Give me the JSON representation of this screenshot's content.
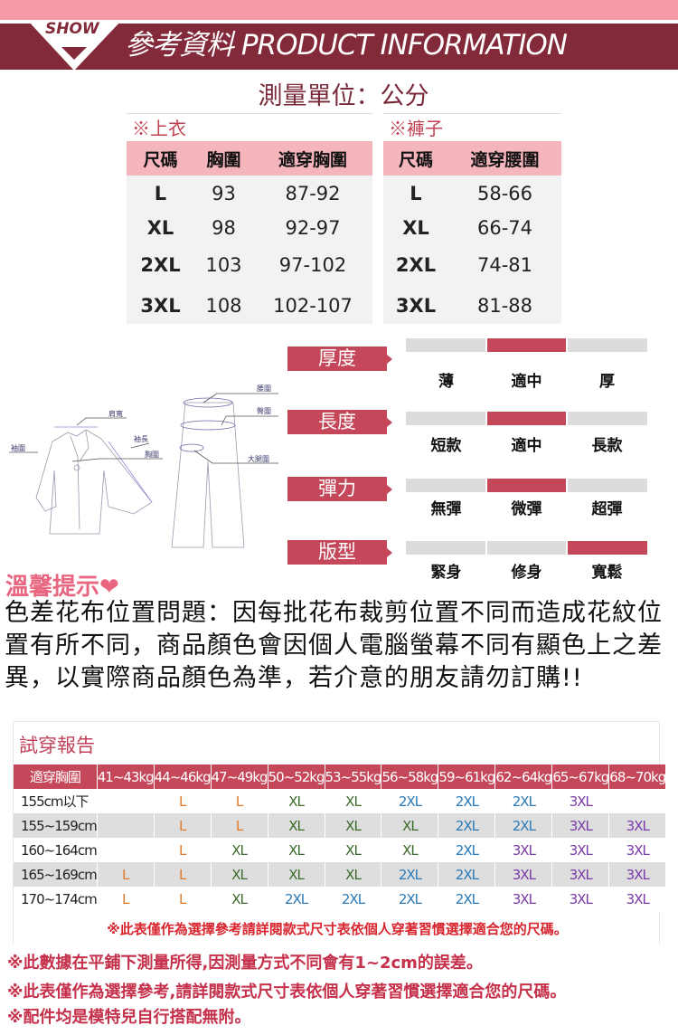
{
  "header": {
    "badge": "SHOW",
    "title": "參考資料 PRODUCT INFORMATION",
    "unit": "測量單位：公分"
  },
  "colors": {
    "maroon": "#832a3a",
    "pink_band": "#f79aa5",
    "accent": "#c5485a",
    "table_header": "#f5b5bd",
    "size_L": "#e07a2a",
    "size_XL": "#3a6b2a",
    "size_2XL": "#2a7ab8",
    "size_3XL": "#7a3aa8"
  },
  "tops": {
    "title": "※上衣",
    "headers": [
      "尺碼",
      "胸圍",
      "適穿胸圍"
    ],
    "rows": [
      [
        "L",
        "93",
        "87-92"
      ],
      [
        "XL",
        "98",
        "92-97"
      ],
      [
        "2XL",
        "103",
        "97-102"
      ],
      [
        "3XL",
        "108",
        "102-107"
      ]
    ]
  },
  "pants": {
    "title": "※褲子",
    "headers": [
      "尺碼",
      "適穿腰圍"
    ],
    "rows": [
      [
        "L",
        "58-66"
      ],
      [
        "XL",
        "66-74"
      ],
      [
        "2XL",
        "74-81"
      ],
      [
        "3XL",
        "81-88"
      ]
    ]
  },
  "diagram": {
    "jacket": [
      "肩寬",
      "袖長",
      "胸圍",
      "袖圍"
    ],
    "pants": [
      "腰圍",
      "臀圍",
      "大腿圍"
    ]
  },
  "features": [
    {
      "label": "厚度",
      "options": [
        "薄",
        "適中",
        "厚"
      ],
      "selected": 1
    },
    {
      "label": "長度",
      "options": [
        "短款",
        "適中",
        "長款"
      ],
      "selected": 1
    },
    {
      "label": "彈力",
      "options": [
        "無彈",
        "微彈",
        "超彈"
      ],
      "selected": 1
    },
    {
      "label": "版型",
      "options": [
        "緊身",
        "修身",
        "寬鬆"
      ],
      "selected": 2
    }
  ],
  "tip": {
    "title": "溫馨提示",
    "icon": "heart-icon",
    "body": "色差花布位置問題：因每批花布裁剪位置不同而造成花紋位置有所不同，商品顏色會因個人電腦螢幕不同有顯色上之差異，以實際商品顏色為準，若介意的朋友請勿訂購!!"
  },
  "report": {
    "title": "試穿報告",
    "headers": [
      "適穿胸圍",
      "41~43kg",
      "44~46kg",
      "47~49kg",
      "50~52kg",
      "53~55kg",
      "56~58kg",
      "59~61kg",
      "62~64kg",
      "65~67kg",
      "68~70kg"
    ],
    "rows": [
      [
        "155cm以下",
        "",
        "L",
        "L",
        "XL",
        "XL",
        "2XL",
        "2XL",
        "2XL",
        "3XL",
        ""
      ],
      [
        "155~159cm",
        "",
        "L",
        "L",
        "XL",
        "XL",
        "XL",
        "2XL",
        "2XL",
        "3XL",
        "3XL"
      ],
      [
        "160~164cm",
        "",
        "L",
        "XL",
        "XL",
        "XL",
        "XL",
        "2XL",
        "3XL",
        "3XL",
        "3XL"
      ],
      [
        "165~169cm",
        "L",
        "L",
        "XL",
        "XL",
        "XL",
        "2XL",
        "2XL",
        "3XL",
        "3XL",
        "3XL"
      ],
      [
        "170~174cm",
        "L",
        "L",
        "XL",
        "2XL",
        "2XL",
        "2XL",
        "2XL",
        "3XL",
        "3XL",
        "3XL"
      ]
    ],
    "note": "※此表僅作為選擇參考請詳閱款式尺寸表依個人穿著習慣選擇適合您的尺碼。"
  },
  "notes": [
    "※此數據在平鋪下測量所得,因測量方式不同會有1~2cm的誤差。",
    "※此表僅作為選擇參考,請詳閱款式尺寸表依個人穿著習慣選擇適合您的尺碼。",
    "※配件均是模特兒自行搭配無附。"
  ]
}
